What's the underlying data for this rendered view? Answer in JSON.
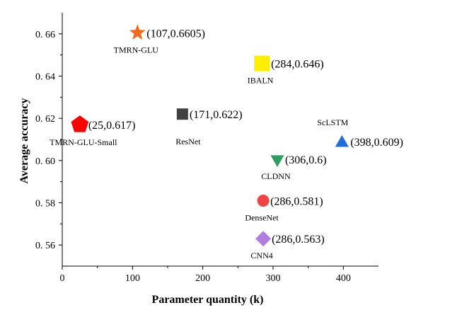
{
  "chart_data": {
    "type": "scatter",
    "title": "",
    "xlabel": "Parameter quantity (k)",
    "ylabel": "Average accuracy",
    "xlim": [
      0,
      450
    ],
    "ylim": [
      0.55,
      0.67
    ],
    "xticks": [
      0,
      100,
      200,
      300,
      400
    ],
    "yticks": [
      0.56,
      0.58,
      0.6,
      0.62,
      0.64,
      0.66
    ],
    "ytick_labels": [
      "0. 56",
      "0. 58",
      "0. 60",
      "0. 62",
      "0. 64",
      "0. 66"
    ],
    "grid": false,
    "points": [
      {
        "name": "TMRN-GLU",
        "x": 107,
        "y": 0.6605,
        "marker": "star",
        "color": "#f26b1d",
        "annotation": "(107,0.6605)"
      },
      {
        "name": "IBALN",
        "x": 284,
        "y": 0.646,
        "marker": "square",
        "color": "#ffee00",
        "annotation": "(284,0.646)"
      },
      {
        "name": "ResNet",
        "x": 171,
        "y": 0.622,
        "marker": "square",
        "color": "#404040",
        "annotation": "(171,0.622)"
      },
      {
        "name": "TMRN-GLU-Small",
        "x": 25,
        "y": 0.617,
        "marker": "pentagon",
        "color": "#ff0000",
        "annotation": "(25,0.617)"
      },
      {
        "name": "ScLSTM",
        "x": 398,
        "y": 0.609,
        "marker": "triangle-up",
        "color": "#1f6fd6",
        "annotation": "(398,0.609)"
      },
      {
        "name": "CLDNN",
        "x": 306,
        "y": 0.6,
        "marker": "triangle-down",
        "color": "#2e9e63",
        "annotation": "(306,0.6)"
      },
      {
        "name": "DenseNet",
        "x": 286,
        "y": 0.581,
        "marker": "circle",
        "color": "#ef4444",
        "annotation": "(286,0.581)"
      },
      {
        "name": "CNN4",
        "x": 286,
        "y": 0.563,
        "marker": "diamond",
        "color": "#b07ce0",
        "annotation": "(286,0.563)"
      }
    ]
  }
}
